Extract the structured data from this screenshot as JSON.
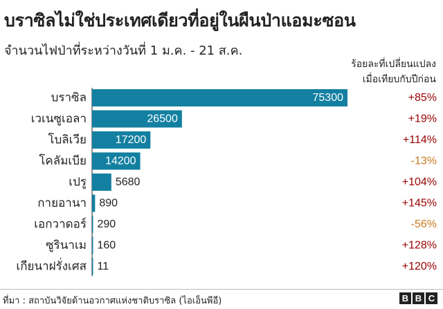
{
  "title": "บราซิลไม่ใช่ประเทศเดียวที่อยู่ในผืนป่าแอมะซอน",
  "subtitle": "จำนวนไฟป่าที่ระหว่างวันที่ 1 ม.ค. - 21 ส.ค.",
  "change_header_line1": "ร้อยละที่เปลี่ยนแปลง",
  "change_header_line2": "เมื่อเทียบกับปีก่อน",
  "source": "ที่มา : สถาบันวิจัยด้านอวกาศแห่งชาติบราซิล (ไอเอ็นพีอี)",
  "logo_letters": [
    "B",
    "B",
    "C"
  ],
  "colors": {
    "bar": "#1380A1",
    "positive_change": "#990000",
    "negative_change": "#C77B1F",
    "text": "#222222"
  },
  "chart_data": {
    "type": "bar",
    "orientation": "horizontal",
    "title": "บราซิลไม่ใช่ประเทศเดียวที่อยู่ในผืนป่าแอมะซอน",
    "subtitle": "จำนวนไฟป่าที่ระหว่างวันที่ 1 ม.ค. - 21 ส.ค.",
    "categories": [
      "บราซิล",
      "เวเนซูเอลา",
      "โบลิเวีย",
      "โคลัมเบีย",
      "เปรู",
      "กายอานา",
      "เอกวาดอร์",
      "ซูรินาเม",
      "เกียนาฝรั่งเศส"
    ],
    "values": [
      75300,
      26500,
      17200,
      14200,
      5680,
      890,
      290,
      160,
      11
    ],
    "value_labels": [
      "75300",
      "26500",
      "17200",
      "14200",
      "5680",
      "890",
      "290",
      "160",
      "11"
    ],
    "change_labels": [
      "+85%",
      "+19%",
      "+114%",
      "-13%",
      "+104%",
      "+145%",
      "-56%",
      "+128%",
      "+120%"
    ],
    "change_values": [
      85,
      19,
      114,
      -13,
      104,
      145,
      -56,
      128,
      120
    ],
    "xlim": [
      0,
      80000
    ],
    "grid": false,
    "legend": "none"
  }
}
